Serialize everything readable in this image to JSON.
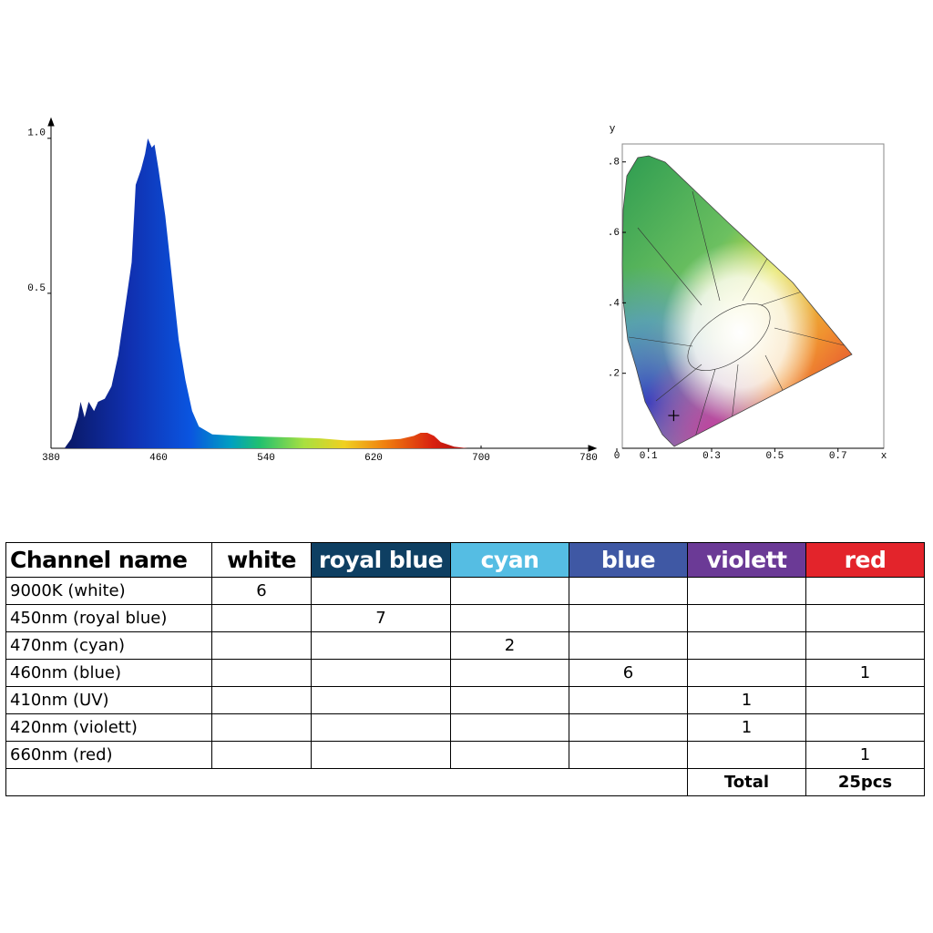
{
  "chart_data": [
    {
      "type": "area",
      "x": [
        380,
        390,
        395,
        400,
        402,
        405,
        408,
        412,
        415,
        420,
        425,
        430,
        435,
        440,
        443,
        447,
        450,
        452,
        455,
        457,
        460,
        465,
        470,
        475,
        480,
        485,
        490,
        500,
        520,
        540,
        560,
        580,
        600,
        620,
        640,
        650,
        655,
        660,
        665,
        670,
        680,
        690,
        700,
        780
      ],
      "values": [
        0,
        0,
        0.03,
        0.1,
        0.15,
        0.1,
        0.15,
        0.12,
        0.15,
        0.16,
        0.2,
        0.3,
        0.45,
        0.6,
        0.85,
        0.9,
        0.95,
        1.0,
        0.97,
        0.98,
        0.9,
        0.75,
        0.55,
        0.35,
        0.22,
        0.12,
        0.07,
        0.045,
        0.04,
        0.037,
        0.035,
        0.032,
        0.025,
        0.025,
        0.03,
        0.04,
        0.05,
        0.05,
        0.04,
        0.02,
        0.005,
        0,
        0,
        0
      ],
      "xlim": [
        380,
        780
      ],
      "ylim": [
        0,
        1.07
      ],
      "xticks": [
        380,
        460,
        540,
        620,
        700,
        780
      ],
      "yticks": [
        0.5,
        {
          "value": 1,
          "label": "1.0"
        }
      ]
    },
    {
      "type": "scatter",
      "xlabel": "x",
      "ylabel": "y",
      "x": [
        0.18
      ],
      "values": [
        0.08
      ],
      "xlim": [
        0,
        0.845
      ],
      "ylim": [
        0,
        0.851
      ],
      "xticks": [
        0,
        0.1,
        0.3,
        0.5,
        0.7
      ],
      "yticks": [
        {
          "value": 0.2,
          "label": ".2"
        },
        {
          "value": 0.4,
          "label": ".4"
        },
        {
          "value": 0.6,
          "label": ".6"
        },
        {
          "value": 0.8,
          "label": ".8"
        }
      ]
    }
  ],
  "table": {
    "header": [
      "Channel name",
      "white",
      "royal blue",
      "cyan",
      "blue",
      "violett",
      "red"
    ],
    "header_colors": [
      "#ffffff",
      "#ffffff",
      "#0e3f62",
      "#55bde3",
      "#3f58a4",
      "#6b3a96",
      "#e3242b"
    ],
    "header_text_colors": [
      "#000000",
      "#000000",
      "#ffffff",
      "#ffffff",
      "#ffffff",
      "#ffffff",
      "#ffffff"
    ],
    "rows": [
      [
        "9000K (white)",
        6,
        null,
        null,
        null,
        null,
        null
      ],
      [
        "450nm (royal blue)",
        null,
        7,
        null,
        null,
        null,
        null
      ],
      [
        "470nm (cyan)",
        null,
        null,
        2,
        null,
        null,
        null
      ],
      [
        "460nm (blue)",
        null,
        null,
        null,
        6,
        null,
        1
      ],
      [
        "410nm (UV)",
        null,
        null,
        null,
        null,
        1,
        null
      ],
      [
        "420nm (violett)",
        null,
        null,
        null,
        null,
        1,
        null
      ],
      [
        "660nm (red)",
        null,
        null,
        null,
        null,
        null,
        1
      ]
    ],
    "footer": [
      "Total",
      "25pcs"
    ]
  }
}
